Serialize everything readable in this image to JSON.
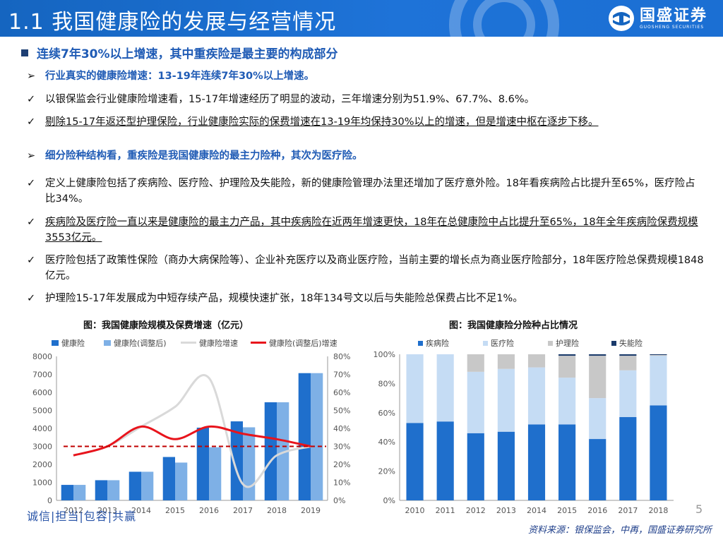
{
  "header": {
    "title": "1.1 我国健康险的发展与经营情况"
  },
  "logo": {
    "name": "国盛证券",
    "sub": "GUOSHENG SECURITIES"
  },
  "section": {
    "title": "连续7年30%以上增速，其中重疾险是最主要的构成部分"
  },
  "bullets": [
    {
      "mk": "➢",
      "text": "行业真实的健康险增速：13-19年连续7年30%以上增速。"
    },
    {
      "mk": "✓",
      "text": "以银保监会行业健康险增速看，15-17年增速经历了明显的波动，三年增速分别为51.9%、67.7%、8.6%。"
    },
    {
      "mk": "✓",
      "text": "剔除15-17年返还型护理保险，行业健康险实际的保费增速在13-19年均保持30%以上的增速，但是增速中枢在逐步下移。"
    },
    {
      "mk": "➢",
      "text": "细分险种结构看，重疾险是我国健康险的最主力险种，其次为医疗险。"
    },
    {
      "mk": "✓",
      "text": "定义上健康险包括了疾病险、医疗险、护理险及失能险，新的健康险管理办法里还增加了医疗意外险。18年看疾病险占比提升至65%，医疗险占比34%。"
    },
    {
      "mk": "✓",
      "text": "疾病险及医疗险一直以来是健康险的最主力产品，其中疾病险在近两年增速更快，18年在总健康险中占比提升至65%，18年全年疾病险保费规模3553亿元。"
    },
    {
      "mk": "✓",
      "text": "医疗险包括了政策性保险（商办大病保险等）、企业补充医疗以及商业医疗险，当前主要的增长点为商业医疗险部分，18年医疗险总保费规模1848亿元。"
    },
    {
      "mk": "✓",
      "text": "护理险15-17年发展成为中短存续产品，规模快速扩张，18年134号文以后与失能险总保费占比不足1%。"
    }
  ],
  "chart_data": [
    {
      "type": "bar",
      "title": "图：我国健康险规模及保费增速（亿元）",
      "categories": [
        "2012",
        "2013",
        "2014",
        "2015",
        "2016",
        "2017",
        "2018",
        "2019"
      ],
      "series": [
        {
          "name": "健康险",
          "kind": "bar",
          "axis": "left",
          "values": [
            860,
            1120,
            1590,
            2410,
            4040,
            4390,
            5450,
            7070
          ]
        },
        {
          "name": "健康险(调整后)",
          "kind": "bar",
          "axis": "left",
          "values": [
            860,
            1120,
            1590,
            2100,
            2950,
            4060,
            5450,
            7070
          ]
        },
        {
          "name": "健康险增速",
          "kind": "line",
          "axis": "right",
          "values": [
            25,
            30,
            41,
            52,
            68,
            9,
            25,
            30
          ]
        },
        {
          "name": "健康险(调整后)增速",
          "kind": "line",
          "axis": "right",
          "values": [
            25,
            30,
            41,
            34,
            41,
            37,
            34,
            30
          ]
        }
      ],
      "reference_line": {
        "value": 30,
        "axis": "right",
        "style": "dashed"
      },
      "ylim_left": [
        0,
        8000
      ],
      "yticks_left": [
        "0",
        "1000",
        "2000",
        "3000",
        "4000",
        "5000",
        "6000",
        "7000",
        "8000"
      ],
      "ylim_right": [
        0,
        80
      ],
      "yticks_right": [
        "0%",
        "10%",
        "20%",
        "30%",
        "40%",
        "50%",
        "60%",
        "70%",
        "80%"
      ],
      "legend": "top",
      "colors": {
        "bar1": "#1f6fcc",
        "bar2": "#7eb0e6",
        "line1": "#d9d9d9",
        "line2": "#e8141c",
        "ref": "#c00000"
      }
    },
    {
      "type": "bar",
      "stacked": true,
      "title": "图：我国健康险分险种占比情况",
      "categories": [
        "2010",
        "2011",
        "2012",
        "2013",
        "2014",
        "2015",
        "2016",
        "2017",
        "2018"
      ],
      "series": [
        {
          "name": "疾病险",
          "values": [
            53,
            54,
            46,
            47,
            52,
            52,
            42,
            57,
            65
          ]
        },
        {
          "name": "医疗险",
          "values": [
            47,
            46,
            42,
            43,
            39,
            32,
            28,
            32,
            34
          ]
        },
        {
          "name": "护理险",
          "values": [
            0,
            0,
            12,
            10,
            9,
            15,
            29,
            10,
            0.5
          ]
        },
        {
          "name": "失能险",
          "values": [
            0,
            0,
            0,
            0,
            0,
            1,
            1,
            1,
            0.5
          ]
        }
      ],
      "ylim": [
        0,
        100
      ],
      "yticks": [
        "0%",
        "20%",
        "40%",
        "60%",
        "80%",
        "100%"
      ],
      "legend": "top",
      "colors": [
        "#1f6fcc",
        "#c5dcf4",
        "#c8c8c8",
        "#1a3a6b"
      ]
    }
  ],
  "footer": {
    "motto": "诚信|担当|包容|共赢",
    "page": "5",
    "source": "资料来源：银保监会，中再，国盛证券研究所"
  }
}
